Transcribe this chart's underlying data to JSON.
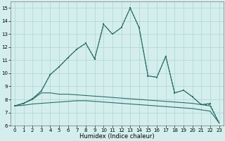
{
  "xlabel": "Humidex (Indice chaleur)",
  "background_color": "#d4eeee",
  "grid_color": "#aed4d4",
  "line_color": "#2a6e68",
  "x": [
    0,
    1,
    2,
    3,
    4,
    5,
    6,
    7,
    8,
    9,
    10,
    11,
    12,
    13,
    14,
    15,
    16,
    17,
    18,
    19,
    20,
    21,
    22,
    23
  ],
  "line1_y": [
    7.5,
    7.7,
    8.05,
    8.65,
    9.9,
    10.5,
    11.2,
    11.85,
    12.3,
    11.1,
    13.75,
    13.0,
    13.5,
    15.0,
    13.5,
    9.8,
    9.7,
    11.3,
    8.5,
    8.7,
    8.2,
    7.6,
    7.7,
    null
  ],
  "line2_y": [
    7.5,
    7.7,
    8.05,
    8.65,
    9.9,
    10.5,
    11.2,
    11.85,
    12.3,
    11.1,
    13.75,
    13.0,
    13.5,
    15.0,
    13.5,
    9.8,
    9.7,
    11.3,
    8.5,
    8.7,
    8.2,
    7.6,
    7.6,
    6.2
  ],
  "line3_y": [
    7.5,
    7.7,
    8.0,
    8.5,
    8.5,
    8.4,
    8.4,
    8.35,
    8.3,
    8.25,
    8.2,
    8.15,
    8.1,
    8.05,
    8.0,
    7.95,
    7.9,
    7.85,
    7.8,
    7.75,
    7.7,
    7.6,
    7.5,
    6.2
  ],
  "line4_y": [
    7.5,
    7.55,
    7.65,
    7.7,
    7.75,
    7.8,
    7.85,
    7.9,
    7.9,
    7.85,
    7.8,
    7.75,
    7.7,
    7.65,
    7.6,
    7.55,
    7.5,
    7.45,
    7.4,
    7.35,
    7.3,
    7.2,
    7.1,
    6.2
  ],
  "ylim": [
    6.0,
    15.5
  ],
  "yticks": [
    6,
    7,
    8,
    9,
    10,
    11,
    12,
    13,
    14,
    15
  ],
  "xticks": [
    0,
    1,
    2,
    3,
    4,
    5,
    6,
    7,
    8,
    9,
    10,
    11,
    12,
    13,
    14,
    15,
    16,
    17,
    18,
    19,
    20,
    21,
    22,
    23
  ],
  "tick_fontsize": 5.0,
  "xlabel_fontsize": 6.0
}
